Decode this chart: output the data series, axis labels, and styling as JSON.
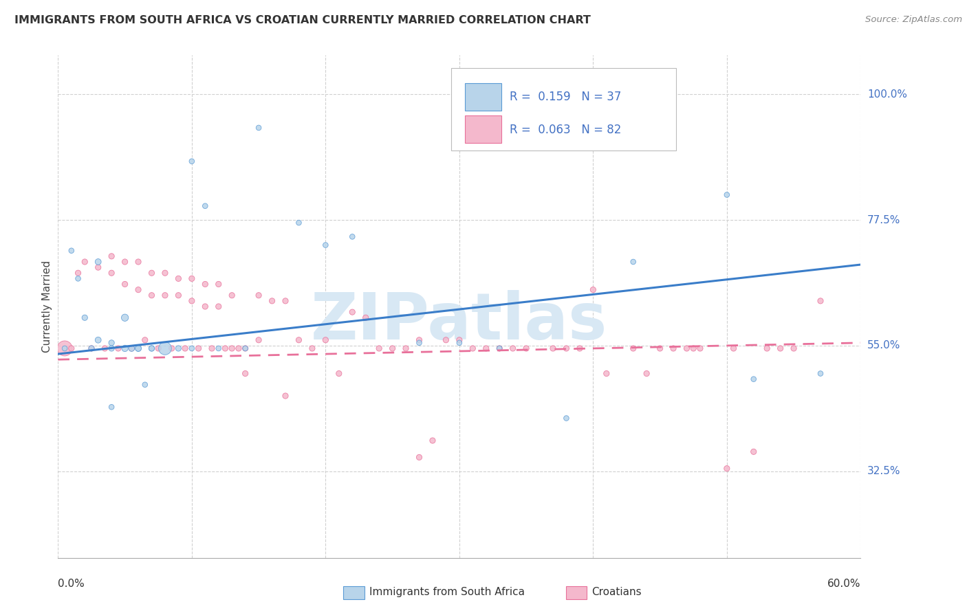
{
  "title": "IMMIGRANTS FROM SOUTH AFRICA VS CROATIAN CURRENTLY MARRIED CORRELATION CHART",
  "source": "Source: ZipAtlas.com",
  "ylabel": "Currently Married",
  "ytick_vals": [
    0.325,
    0.55,
    0.775,
    1.0
  ],
  "ytick_labels": [
    "32.5%",
    "55.0%",
    "77.5%",
    "100.0%"
  ],
  "xtick_left_label": "0.0%",
  "xtick_right_label": "60.0%",
  "xmin": 0.0,
  "xmax": 0.6,
  "ymin": 0.17,
  "ymax": 1.07,
  "blue_line_x0": 0.0,
  "blue_line_y0": 0.535,
  "blue_line_x1": 0.6,
  "blue_line_y1": 0.695,
  "pink_line_x0": 0.0,
  "pink_line_y0": 0.525,
  "pink_line_x1": 0.6,
  "pink_line_y1": 0.555,
  "color_blue_fill": "#b8d4ea",
  "color_blue_edge": "#5b9bd5",
  "color_blue_line": "#3a7dc9",
  "color_pink_fill": "#f4b8cc",
  "color_pink_edge": "#e8709a",
  "color_pink_line": "#e8709a",
  "color_grid": "#d0d0d0",
  "color_ytick_label": "#4472C4",
  "color_title": "#333333",
  "color_source": "#888888",
  "watermark_text": "ZIPatlas",
  "watermark_color": "#d8e8f4",
  "legend_r1_text": "R =  0.159   N = 37",
  "legend_r2_text": "R =  0.063   N = 82",
  "legend_color": "#4472C4",
  "blue_x": [
    0.005,
    0.01,
    0.015,
    0.02,
    0.025,
    0.03,
    0.03,
    0.04,
    0.04,
    0.04,
    0.05,
    0.05,
    0.055,
    0.06,
    0.06,
    0.065,
    0.07,
    0.07,
    0.08,
    0.09,
    0.1,
    0.1,
    0.11,
    0.12,
    0.14,
    0.15,
    0.18,
    0.2,
    0.22,
    0.27,
    0.3,
    0.33,
    0.38,
    0.43,
    0.5,
    0.52,
    0.57
  ],
  "blue_y": [
    0.545,
    0.72,
    0.67,
    0.6,
    0.545,
    0.56,
    0.7,
    0.545,
    0.555,
    0.44,
    0.6,
    0.545,
    0.545,
    0.545,
    0.545,
    0.48,
    0.545,
    0.545,
    0.545,
    0.545,
    0.88,
    0.545,
    0.8,
    0.545,
    0.545,
    0.94,
    0.77,
    0.73,
    0.745,
    0.555,
    0.555,
    0.545,
    0.42,
    0.7,
    0.82,
    0.49,
    0.5
  ],
  "blue_size": [
    30,
    30,
    30,
    35,
    35,
    40,
    40,
    35,
    35,
    30,
    55,
    45,
    40,
    40,
    40,
    30,
    35,
    35,
    180,
    35,
    30,
    30,
    30,
    30,
    30,
    30,
    30,
    30,
    30,
    30,
    30,
    30,
    30,
    30,
    30,
    30,
    30
  ],
  "pink_x": [
    0.005,
    0.01,
    0.015,
    0.02,
    0.025,
    0.03,
    0.035,
    0.04,
    0.04,
    0.045,
    0.05,
    0.05,
    0.055,
    0.06,
    0.06,
    0.065,
    0.07,
    0.07,
    0.075,
    0.08,
    0.08,
    0.085,
    0.09,
    0.09,
    0.095,
    0.1,
    0.1,
    0.105,
    0.11,
    0.11,
    0.115,
    0.12,
    0.12,
    0.125,
    0.13,
    0.13,
    0.135,
    0.14,
    0.14,
    0.15,
    0.15,
    0.16,
    0.17,
    0.17,
    0.18,
    0.19,
    0.2,
    0.21,
    0.22,
    0.23,
    0.24,
    0.25,
    0.26,
    0.27,
    0.27,
    0.28,
    0.29,
    0.3,
    0.31,
    0.32,
    0.33,
    0.34,
    0.35,
    0.37,
    0.38,
    0.39,
    0.4,
    0.41,
    0.43,
    0.44,
    0.45,
    0.46,
    0.47,
    0.48,
    0.5,
    0.52,
    0.53,
    0.54,
    0.55,
    0.57,
    0.475,
    0.505
  ],
  "pink_y": [
    0.545,
    0.545,
    0.68,
    0.7,
    0.545,
    0.69,
    0.545,
    0.71,
    0.68,
    0.545,
    0.7,
    0.66,
    0.545,
    0.7,
    0.65,
    0.56,
    0.68,
    0.64,
    0.545,
    0.68,
    0.64,
    0.545,
    0.67,
    0.64,
    0.545,
    0.67,
    0.63,
    0.545,
    0.66,
    0.62,
    0.545,
    0.66,
    0.62,
    0.545,
    0.64,
    0.545,
    0.545,
    0.545,
    0.5,
    0.64,
    0.56,
    0.63,
    0.63,
    0.46,
    0.56,
    0.545,
    0.56,
    0.5,
    0.61,
    0.6,
    0.545,
    0.545,
    0.545,
    0.35,
    0.56,
    0.38,
    0.56,
    0.56,
    0.545,
    0.545,
    0.545,
    0.545,
    0.545,
    0.545,
    0.545,
    0.545,
    0.65,
    0.5,
    0.545,
    0.5,
    0.545,
    0.545,
    0.545,
    0.545,
    0.33,
    0.36,
    0.545,
    0.545,
    0.545,
    0.63,
    0.545,
    0.545
  ],
  "pink_size": [
    250,
    35,
    35,
    35,
    35,
    35,
    35,
    35,
    35,
    35,
    35,
    35,
    35,
    35,
    35,
    35,
    35,
    35,
    35,
    35,
    35,
    35,
    35,
    35,
    35,
    35,
    35,
    35,
    35,
    35,
    35,
    35,
    35,
    35,
    35,
    35,
    35,
    35,
    35,
    35,
    35,
    35,
    35,
    35,
    35,
    35,
    35,
    35,
    35,
    35,
    35,
    35,
    35,
    35,
    35,
    35,
    35,
    35,
    35,
    35,
    35,
    35,
    35,
    35,
    35,
    35,
    35,
    35,
    35,
    35,
    35,
    35,
    35,
    35,
    35,
    35,
    35,
    35,
    35,
    35,
    35,
    35
  ]
}
